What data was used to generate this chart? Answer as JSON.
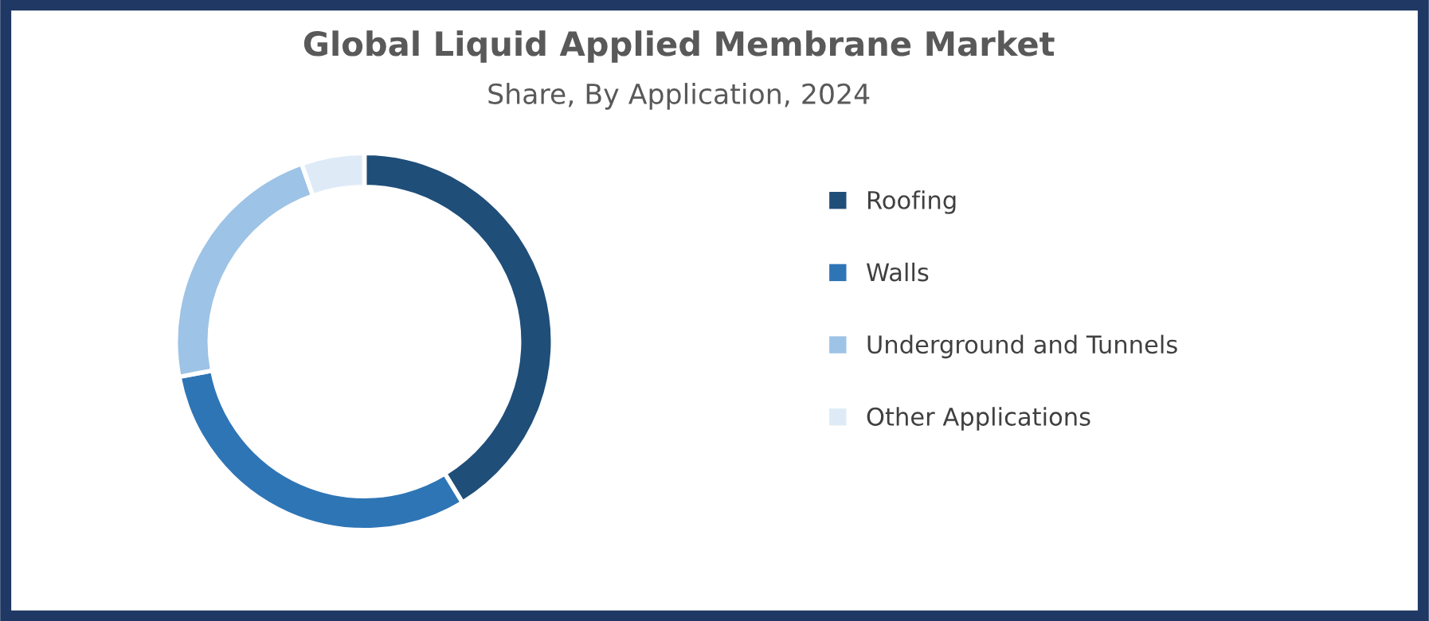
{
  "chart_data": {
    "type": "donut",
    "title": "Global Liquid Applied Membrane Market",
    "subtitle": "Share, By Application, 2024",
    "categories": [
      "Roofing",
      "Walls",
      "Underground and Tunnels",
      "Other Applications"
    ],
    "values": [
      41.3,
      30.7,
      22.6,
      5.4
    ],
    "colors": [
      "#1f4e79",
      "#2e75b6",
      "#9dc3e6",
      "#deebf7"
    ],
    "legend": "right"
  }
}
